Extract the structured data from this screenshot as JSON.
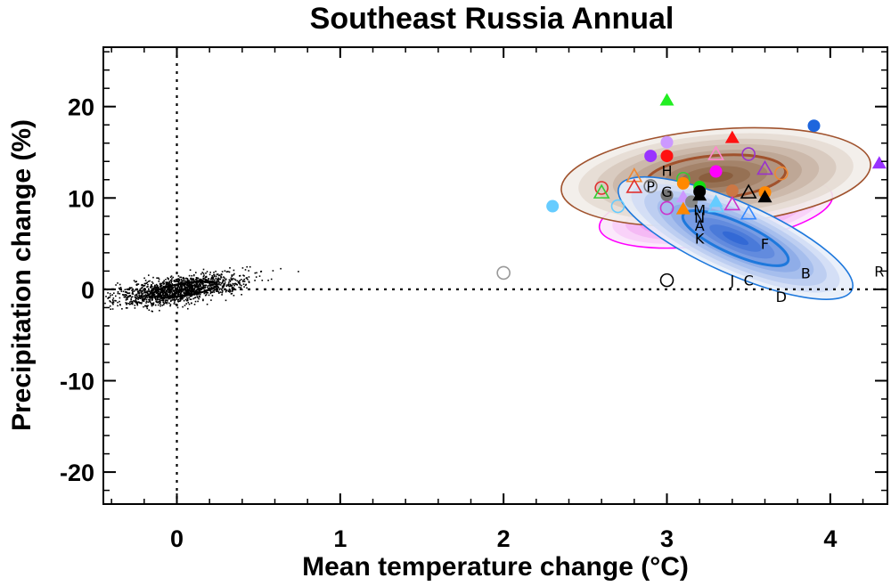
{
  "chart_data": {
    "type": "scatter",
    "title": "Southeast Russia Annual",
    "xlabel": "Mean temperature change (°C)",
    "ylabel": "Precipitation change (%)",
    "xlim": [
      -0.45,
      4.35
    ],
    "ylim": [
      -23.5,
      26.5
    ],
    "xticks": [
      "0",
      "1",
      "2",
      "3",
      "4"
    ],
    "yticks": [
      "-20",
      "-10",
      "0",
      "10",
      "20"
    ],
    "grid": false,
    "reference_lines": {
      "x": 0,
      "y": 0,
      "style": "dotted"
    },
    "natural_variability_cloud": {
      "center": [
        0.0,
        0.0
      ],
      "spread_x": 0.19,
      "spread_y": 1.1,
      "color": "#000000"
    },
    "ellipses": [
      {
        "cx": 3.3,
        "cy": 8.5,
        "rx": 0.72,
        "ry": 3.6,
        "angle": 8,
        "color": "#ff00ff",
        "dark": [
          0.85,
          0.0,
          0.85
        ]
      },
      {
        "cx": 3.3,
        "cy": 12.3,
        "rx": 0.95,
        "ry": 5.2,
        "angle": 5,
        "color": "#a0522d",
        "dark": [
          0.45,
          0.25,
          0.1
        ]
      },
      {
        "cx": 3.42,
        "cy": 5.6,
        "rx": 0.78,
        "ry": 3.9,
        "angle": -24,
        "color": "#1e78dc",
        "dark": [
          0.05,
          0.3,
          0.8
        ]
      }
    ],
    "points": [
      {
        "x": 2.3,
        "y": 9.1,
        "marker": "circle",
        "filled": true,
        "color": "#66ccff"
      },
      {
        "x": 2.6,
        "y": 11.1,
        "marker": "circle",
        "filled": false,
        "color": "#e03030"
      },
      {
        "x": 2.6,
        "y": 10.6,
        "marker": "triangle",
        "filled": false,
        "color": "#33cc33"
      },
      {
        "x": 2.7,
        "y": 9.1,
        "marker": "circle",
        "filled": false,
        "color": "#66ccff"
      },
      {
        "x": 2.8,
        "y": 12.4,
        "marker": "triangle",
        "filled": false,
        "color": "#ee8833"
      },
      {
        "x": 2.8,
        "y": 11.2,
        "marker": "triangle",
        "filled": false,
        "color": "#e03030"
      },
      {
        "x": 2.9,
        "y": 14.6,
        "marker": "circle",
        "filled": true,
        "color": "#9933ff"
      },
      {
        "x": 2.9,
        "y": 11.3,
        "marker": "circle",
        "filled": false,
        "color": "#777777"
      },
      {
        "x": 3.0,
        "y": 20.7,
        "marker": "triangle",
        "filled": true,
        "color": "#22ee22"
      },
      {
        "x": 3.0,
        "y": 16.1,
        "marker": "circle",
        "filled": true,
        "color": "#cc99ff"
      },
      {
        "x": 3.0,
        "y": 14.6,
        "marker": "circle",
        "filled": true,
        "color": "#ff1111"
      },
      {
        "x": 3.0,
        "y": 10.3,
        "marker": "circle",
        "filled": true,
        "color": "#777777"
      },
      {
        "x": 3.0,
        "y": 8.9,
        "marker": "circle",
        "filled": false,
        "color": "#cc33cc"
      },
      {
        "x": 3.0,
        "y": 1.0,
        "marker": "circle",
        "filled": false,
        "color": "#000000"
      },
      {
        "x": 3.1,
        "y": 12.1,
        "marker": "circle",
        "filled": false,
        "color": "#33cc33"
      },
      {
        "x": 3.1,
        "y": 11.6,
        "marker": "circle",
        "filled": true,
        "color": "#ff8800"
      },
      {
        "x": 3.1,
        "y": 10.1,
        "marker": "triangle",
        "filled": true,
        "color": "#cc99ff"
      },
      {
        "x": 3.1,
        "y": 8.8,
        "marker": "triangle",
        "filled": true,
        "color": "#ff8800"
      },
      {
        "x": 3.15,
        "y": 9.6,
        "marker": "circle",
        "filled": true,
        "color": "#888888"
      },
      {
        "x": 3.2,
        "y": 11.2,
        "marker": "circle",
        "filled": true,
        "color": "#11dd11"
      },
      {
        "x": 3.2,
        "y": 10.7,
        "marker": "circle",
        "filled": true,
        "color": "#000000"
      },
      {
        "x": 3.2,
        "y": 10.3,
        "marker": "triangle",
        "filled": true,
        "color": "#000000"
      },
      {
        "x": 3.3,
        "y": 14.8,
        "marker": "triangle",
        "filled": false,
        "color": "#ff88cc"
      },
      {
        "x": 3.3,
        "y": 12.9,
        "marker": "circle",
        "filled": true,
        "color": "#ff00ff"
      },
      {
        "x": 3.3,
        "y": 9.6,
        "marker": "triangle",
        "filled": true,
        "color": "#66ccff"
      },
      {
        "x": 3.3,
        "y": 9.1,
        "marker": "triangle",
        "filled": false,
        "color": "#66ccff"
      },
      {
        "x": 3.4,
        "y": 16.6,
        "marker": "triangle",
        "filled": true,
        "color": "#ff1111"
      },
      {
        "x": 3.4,
        "y": 10.8,
        "marker": "circle",
        "filled": true,
        "color": "#cc7744"
      },
      {
        "x": 3.4,
        "y": 9.3,
        "marker": "triangle",
        "filled": false,
        "color": "#cc33cc"
      },
      {
        "x": 3.5,
        "y": 14.8,
        "marker": "circle",
        "filled": false,
        "color": "#9933cc"
      },
      {
        "x": 3.5,
        "y": 10.6,
        "marker": "triangle",
        "filled": false,
        "color": "#000000"
      },
      {
        "x": 3.5,
        "y": 8.3,
        "marker": "triangle",
        "filled": false,
        "color": "#3388ff"
      },
      {
        "x": 3.6,
        "y": 13.2,
        "marker": "triangle",
        "filled": false,
        "color": "#9933cc"
      },
      {
        "x": 3.6,
        "y": 10.6,
        "marker": "circle",
        "filled": true,
        "color": "#ff8800"
      },
      {
        "x": 3.6,
        "y": 10.1,
        "marker": "triangle",
        "filled": true,
        "color": "#000000"
      },
      {
        "x": 3.7,
        "y": 12.7,
        "marker": "circle",
        "filled": false,
        "color": "#ee8833"
      },
      {
        "x": 3.9,
        "y": 17.9,
        "marker": "circle",
        "filled": true,
        "color": "#1e66dd"
      },
      {
        "x": 4.3,
        "y": 13.8,
        "marker": "triangle",
        "filled": true,
        "color": "#9933ff"
      },
      {
        "x": 2.0,
        "y": 1.8,
        "marker": "circle",
        "filled": false,
        "color": "#999999"
      }
    ],
    "letter_labels": [
      {
        "text": "H",
        "x": 3.0,
        "y": 13.0
      },
      {
        "text": "P",
        "x": 2.9,
        "y": 11.3
      },
      {
        "text": "G",
        "x": 3.0,
        "y": 10.7
      },
      {
        "text": "M",
        "x": 3.2,
        "y": 8.7
      },
      {
        "text": "N",
        "x": 3.2,
        "y": 7.9
      },
      {
        "text": "A",
        "x": 3.2,
        "y": 7.0
      },
      {
        "text": "K",
        "x": 3.2,
        "y": 5.6
      },
      {
        "text": "F",
        "x": 3.6,
        "y": 5.0
      },
      {
        "text": "B",
        "x": 3.85,
        "y": 1.8
      },
      {
        "text": "J",
        "x": 3.4,
        "y": 1.0
      },
      {
        "text": "C",
        "x": 3.5,
        "y": 1.0
      },
      {
        "text": "D",
        "x": 3.7,
        "y": -0.8
      },
      {
        "text": "R",
        "x": 4.3,
        "y": 2.0
      }
    ]
  }
}
